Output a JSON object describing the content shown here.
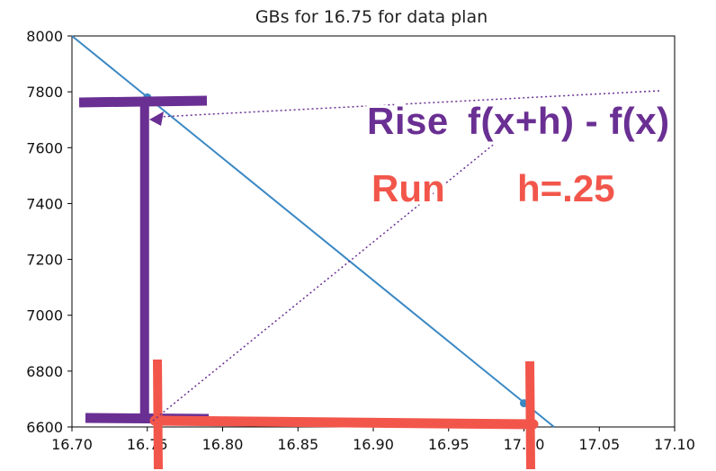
{
  "chart_data": {
    "type": "line",
    "title": "GBs for 16.75 for data plan",
    "xlabel": "",
    "ylabel": "",
    "xlim": [
      16.7,
      17.1
    ],
    "ylim": [
      6600,
      8000
    ],
    "x_ticks": [
      "16.70",
      "16.75",
      "16.80",
      "16.85",
      "16.90",
      "16.95",
      "17.00",
      "17.05",
      "17.10"
    ],
    "y_ticks": [
      "6600",
      "6800",
      "7000",
      "7200",
      "7400",
      "7600",
      "7800",
      "8000"
    ],
    "series": [
      {
        "x": [
          16.7,
          17.02
        ],
        "y": [
          8000,
          6600
        ],
        "color": "#3a88c4"
      }
    ],
    "points": [
      {
        "x": 16.75,
        "y": 7780
      },
      {
        "x": 17.0,
        "y": 6685
      }
    ],
    "grid": false,
    "annotations": {
      "rise_label": "Rise",
      "rise_formula": "f(x+h) - f(x)",
      "run_label": "Run",
      "run_value": "h=.25",
      "rise_color": "#6a2f93",
      "run_color": "#f2564b"
    }
  }
}
